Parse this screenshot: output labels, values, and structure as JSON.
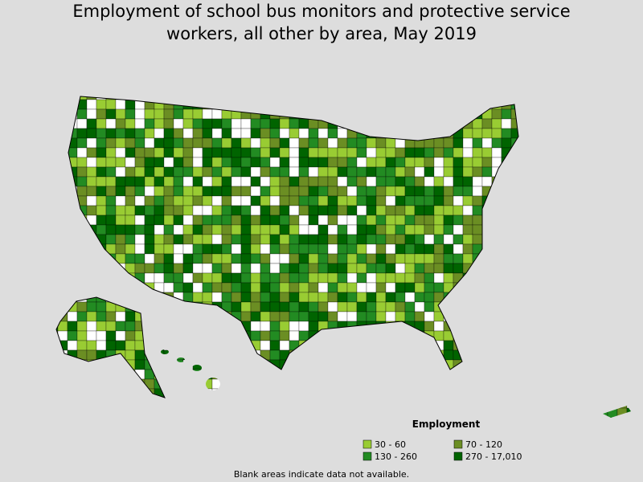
{
  "title": "Employment of school bus monitors and protective service workers, all other by area, May 2019",
  "legend": {
    "title": "Employment",
    "items": [
      {
        "label": "30 - 60",
        "color": "#99cc33"
      },
      {
        "label": "70 - 120",
        "color": "#6b8e23"
      },
      {
        "label": "130 - 260",
        "color": "#228b22"
      },
      {
        "label": "270 - 17,010",
        "color": "#006400"
      }
    ]
  },
  "note": "Blank areas indicate data not available."
}
